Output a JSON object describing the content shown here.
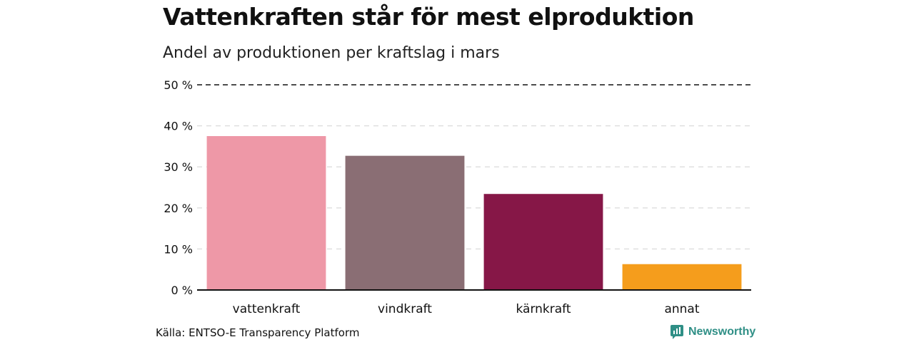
{
  "header": {
    "title": "Vattenkraften står för mest elproduktion",
    "subtitle": "Andel av produktionen per kraftslag i mars"
  },
  "chart_data": {
    "type": "bar",
    "title": "Vattenkraften står för mest elproduktion",
    "subtitle": "Andel av produktionen per kraftslag i mars",
    "xlabel": "",
    "ylabel": "",
    "categories": [
      "vattenkraft",
      "vindkraft",
      "kärnkraft",
      "annat"
    ],
    "values": [
      37.5,
      32.7,
      23.4,
      6.3
    ],
    "colors": [
      "#ee98a7",
      "#8a6e74",
      "#861747",
      "#f59d1c"
    ],
    "ylim": [
      0,
      50
    ],
    "yticks": [
      0,
      10,
      20,
      30,
      40,
      50
    ],
    "ytick_labels": [
      "0 %",
      "10 %",
      "20 %",
      "30 %",
      "40 %",
      "50 %"
    ],
    "grid": true
  },
  "footer": {
    "source": "Källa: ENTSO-E Transparency Platform",
    "brand": "Newsworthy",
    "brand_color": "#2f8f86"
  }
}
